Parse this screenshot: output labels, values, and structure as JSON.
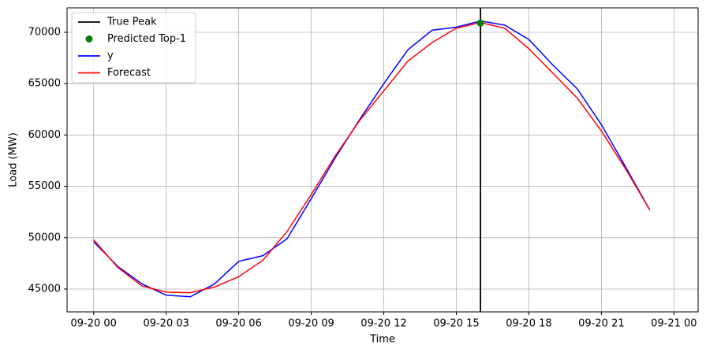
{
  "chart_data": {
    "type": "line",
    "x_label": "Time",
    "y_label": "Load (MW)",
    "x": [
      "09-20 00",
      "09-20 01",
      "09-20 02",
      "09-20 03",
      "09-20 04",
      "09-20 05",
      "09-20 06",
      "09-20 07",
      "09-20 08",
      "09-20 09",
      "09-20 10",
      "09-20 11",
      "09-20 12",
      "09-20 13",
      "09-20 14",
      "09-20 15",
      "09-20 16",
      "09-20 17",
      "09-20 18",
      "09-20 19",
      "09-20 20",
      "09-20 21",
      "09-20 22",
      "09-20 23"
    ],
    "vline": {
      "name": "True Peak",
      "x": "09-20 16",
      "color": "#000000"
    },
    "point": {
      "name": "Predicted Top-1",
      "x": "09-20 16",
      "y": 70900,
      "color": "#008000"
    },
    "series": [
      {
        "name": "y",
        "color": "#0000ff",
        "values": [
          49600,
          47200,
          45500,
          44400,
          44250,
          45500,
          47700,
          48250,
          49900,
          53800,
          57800,
          61500,
          65000,
          68300,
          70200,
          70500,
          71100,
          70700,
          69300,
          66800,
          64500,
          61000,
          56900,
          52700
        ]
      },
      {
        "name": "Forecast",
        "color": "#ff0000",
        "values": [
          49800,
          47100,
          45300,
          44700,
          44650,
          45200,
          46200,
          47800,
          50600,
          54200,
          58000,
          61400,
          64300,
          67200,
          69000,
          70400,
          70950,
          70400,
          68400,
          66000,
          63600,
          60400,
          56700,
          52700
        ]
      }
    ],
    "xlim": [
      "09-19 22:54",
      "09-21 01:00"
    ],
    "xticks": [
      "09-20 00",
      "09-20 03",
      "09-20 06",
      "09-20 09",
      "09-20 12",
      "09-20 15",
      "09-20 18",
      "09-20 21",
      "09-21 00"
    ],
    "ylim": [
      42776,
      72377
    ],
    "yticks": [
      45000,
      50000,
      55000,
      60000,
      65000,
      70000
    ],
    "grid": true,
    "legend": "upper-left"
  }
}
